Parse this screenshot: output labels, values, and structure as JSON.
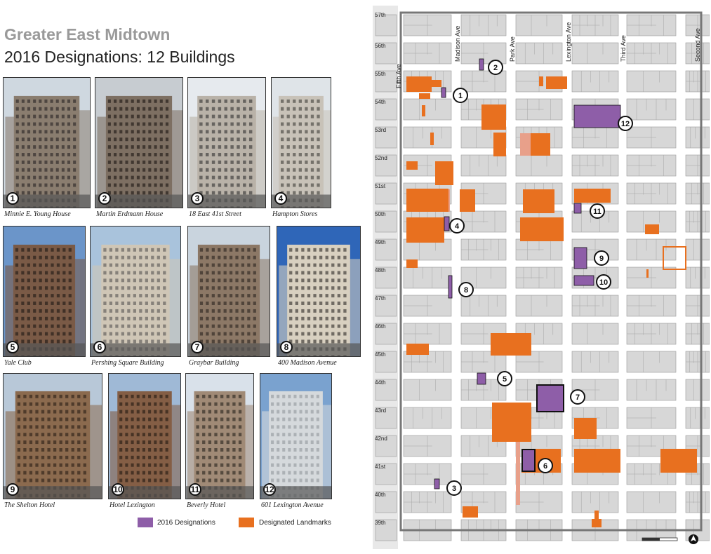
{
  "title": "Greater East Midtown",
  "subtitle": "2016 Designations: 12 Buildings",
  "buildings": [
    {
      "num": "1",
      "name": "Minnie E. Young House"
    },
    {
      "num": "2",
      "name": "Martin Erdmann House"
    },
    {
      "num": "3",
      "name": "18 East 41st Street"
    },
    {
      "num": "4",
      "name": "Hampton Stores"
    },
    {
      "num": "5",
      "name": "Yale Club"
    },
    {
      "num": "6",
      "name": "Pershing Square Building"
    },
    {
      "num": "7",
      "name": "Graybar Building"
    },
    {
      "num": "8",
      "name": "400 Madison Avenue"
    },
    {
      "num": "9",
      "name": "The Shelton Hotel"
    },
    {
      "num": "10",
      "name": "Hotel Lexington"
    },
    {
      "num": "11",
      "name": "Beverly Hotel"
    },
    {
      "num": "12",
      "name": "601 Lexington Avenue"
    }
  ],
  "legend": {
    "designations_2016": {
      "label": "2016 Designations",
      "color": "#8e5ea8"
    },
    "designated_landmarks": {
      "label": "Designated Landmarks",
      "color": "#e8701f"
    }
  },
  "map": {
    "streets": [
      "57th",
      "56th",
      "55th",
      "54th",
      "53rd",
      "52nd",
      "51st",
      "50th",
      "49th",
      "48th",
      "47th",
      "46th",
      "45th",
      "44th",
      "43rd",
      "42nd",
      "41st",
      "40th",
      "39th"
    ],
    "avenues": [
      "Fifth Ave",
      "Madison Ave",
      "Park Ave",
      "Lexington Ave",
      "Third Ave",
      "Second Ave"
    ]
  }
}
